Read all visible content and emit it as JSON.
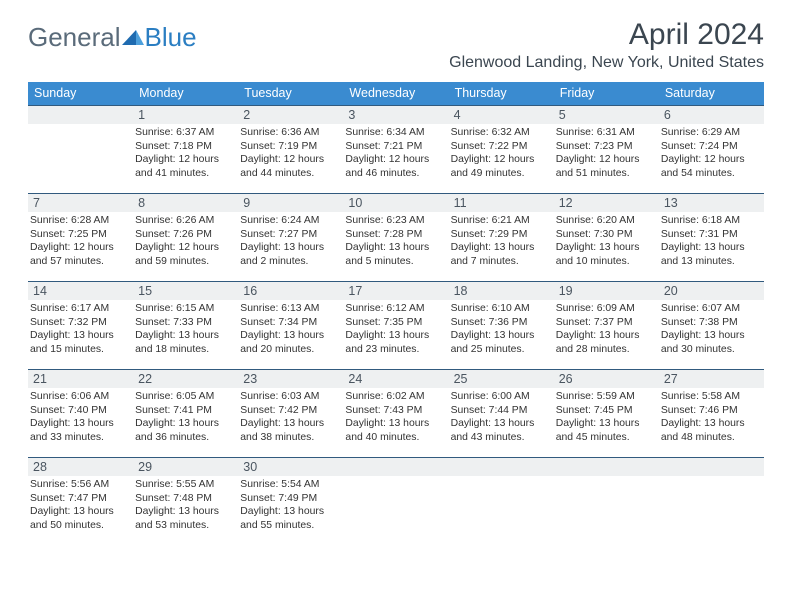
{
  "brand": {
    "part1": "General",
    "part2": "Blue",
    "tri_color": "#1f6bb0"
  },
  "title": "April 2024",
  "location": "Glenwood Landing, New York, United States",
  "header_bg": "#3a8bd0",
  "row_border": "#315a7e",
  "daynum_bg": "#eef0f1",
  "days_of_week": [
    "Sunday",
    "Monday",
    "Tuesday",
    "Wednesday",
    "Thursday",
    "Friday",
    "Saturday"
  ],
  "weeks": [
    [
      null,
      {
        "n": "1",
        "sunrise": "6:37 AM",
        "sunset": "7:18 PM",
        "dl1": "Daylight: 12 hours",
        "dl2": "and 41 minutes."
      },
      {
        "n": "2",
        "sunrise": "6:36 AM",
        "sunset": "7:19 PM",
        "dl1": "Daylight: 12 hours",
        "dl2": "and 44 minutes."
      },
      {
        "n": "3",
        "sunrise": "6:34 AM",
        "sunset": "7:21 PM",
        "dl1": "Daylight: 12 hours",
        "dl2": "and 46 minutes."
      },
      {
        "n": "4",
        "sunrise": "6:32 AM",
        "sunset": "7:22 PM",
        "dl1": "Daylight: 12 hours",
        "dl2": "and 49 minutes."
      },
      {
        "n": "5",
        "sunrise": "6:31 AM",
        "sunset": "7:23 PM",
        "dl1": "Daylight: 12 hours",
        "dl2": "and 51 minutes."
      },
      {
        "n": "6",
        "sunrise": "6:29 AM",
        "sunset": "7:24 PM",
        "dl1": "Daylight: 12 hours",
        "dl2": "and 54 minutes."
      }
    ],
    [
      {
        "n": "7",
        "sunrise": "6:28 AM",
        "sunset": "7:25 PM",
        "dl1": "Daylight: 12 hours",
        "dl2": "and 57 minutes."
      },
      {
        "n": "8",
        "sunrise": "6:26 AM",
        "sunset": "7:26 PM",
        "dl1": "Daylight: 12 hours",
        "dl2": "and 59 minutes."
      },
      {
        "n": "9",
        "sunrise": "6:24 AM",
        "sunset": "7:27 PM",
        "dl1": "Daylight: 13 hours",
        "dl2": "and 2 minutes."
      },
      {
        "n": "10",
        "sunrise": "6:23 AM",
        "sunset": "7:28 PM",
        "dl1": "Daylight: 13 hours",
        "dl2": "and 5 minutes."
      },
      {
        "n": "11",
        "sunrise": "6:21 AM",
        "sunset": "7:29 PM",
        "dl1": "Daylight: 13 hours",
        "dl2": "and 7 minutes."
      },
      {
        "n": "12",
        "sunrise": "6:20 AM",
        "sunset": "7:30 PM",
        "dl1": "Daylight: 13 hours",
        "dl2": "and 10 minutes."
      },
      {
        "n": "13",
        "sunrise": "6:18 AM",
        "sunset": "7:31 PM",
        "dl1": "Daylight: 13 hours",
        "dl2": "and 13 minutes."
      }
    ],
    [
      {
        "n": "14",
        "sunrise": "6:17 AM",
        "sunset": "7:32 PM",
        "dl1": "Daylight: 13 hours",
        "dl2": "and 15 minutes."
      },
      {
        "n": "15",
        "sunrise": "6:15 AM",
        "sunset": "7:33 PM",
        "dl1": "Daylight: 13 hours",
        "dl2": "and 18 minutes."
      },
      {
        "n": "16",
        "sunrise": "6:13 AM",
        "sunset": "7:34 PM",
        "dl1": "Daylight: 13 hours",
        "dl2": "and 20 minutes."
      },
      {
        "n": "17",
        "sunrise": "6:12 AM",
        "sunset": "7:35 PM",
        "dl1": "Daylight: 13 hours",
        "dl2": "and 23 minutes."
      },
      {
        "n": "18",
        "sunrise": "6:10 AM",
        "sunset": "7:36 PM",
        "dl1": "Daylight: 13 hours",
        "dl2": "and 25 minutes."
      },
      {
        "n": "19",
        "sunrise": "6:09 AM",
        "sunset": "7:37 PM",
        "dl1": "Daylight: 13 hours",
        "dl2": "and 28 minutes."
      },
      {
        "n": "20",
        "sunrise": "6:07 AM",
        "sunset": "7:38 PM",
        "dl1": "Daylight: 13 hours",
        "dl2": "and 30 minutes."
      }
    ],
    [
      {
        "n": "21",
        "sunrise": "6:06 AM",
        "sunset": "7:40 PM",
        "dl1": "Daylight: 13 hours",
        "dl2": "and 33 minutes."
      },
      {
        "n": "22",
        "sunrise": "6:05 AM",
        "sunset": "7:41 PM",
        "dl1": "Daylight: 13 hours",
        "dl2": "and 36 minutes."
      },
      {
        "n": "23",
        "sunrise": "6:03 AM",
        "sunset": "7:42 PM",
        "dl1": "Daylight: 13 hours",
        "dl2": "and 38 minutes."
      },
      {
        "n": "24",
        "sunrise": "6:02 AM",
        "sunset": "7:43 PM",
        "dl1": "Daylight: 13 hours",
        "dl2": "and 40 minutes."
      },
      {
        "n": "25",
        "sunrise": "6:00 AM",
        "sunset": "7:44 PM",
        "dl1": "Daylight: 13 hours",
        "dl2": "and 43 minutes."
      },
      {
        "n": "26",
        "sunrise": "5:59 AM",
        "sunset": "7:45 PM",
        "dl1": "Daylight: 13 hours",
        "dl2": "and 45 minutes."
      },
      {
        "n": "27",
        "sunrise": "5:58 AM",
        "sunset": "7:46 PM",
        "dl1": "Daylight: 13 hours",
        "dl2": "and 48 minutes."
      }
    ],
    [
      {
        "n": "28",
        "sunrise": "5:56 AM",
        "sunset": "7:47 PM",
        "dl1": "Daylight: 13 hours",
        "dl2": "and 50 minutes."
      },
      {
        "n": "29",
        "sunrise": "5:55 AM",
        "sunset": "7:48 PM",
        "dl1": "Daylight: 13 hours",
        "dl2": "and 53 minutes."
      },
      {
        "n": "30",
        "sunrise": "5:54 AM",
        "sunset": "7:49 PM",
        "dl1": "Daylight: 13 hours",
        "dl2": "and 55 minutes."
      },
      null,
      null,
      null,
      null
    ]
  ]
}
